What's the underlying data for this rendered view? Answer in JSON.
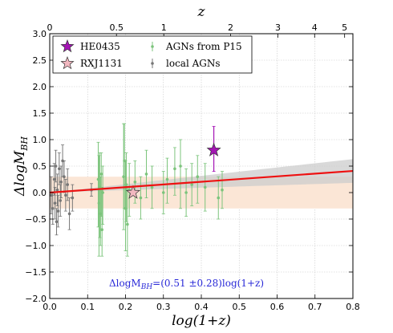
{
  "chart_data": {
    "type": "scatter",
    "xlabel": "log(1+z)",
    "ylabel": "ΔlogM_BH",
    "top_xlabel": "z",
    "xlim": [
      0.0,
      0.8
    ],
    "ylim": [
      -2.0,
      3.0
    ],
    "x_ticks": [
      "0.0",
      "0.1",
      "0.2",
      "0.3",
      "0.4",
      "0.5",
      "0.6",
      "0.7",
      "0.8"
    ],
    "y_ticks": [
      "−2.0",
      "−1.5",
      "−1.0",
      "−0.5",
      "0.0",
      "0.5",
      "1.0",
      "1.5",
      "2.0",
      "2.5",
      "3.0"
    ],
    "top_ticks": [
      {
        "label": "0",
        "z": 0
      },
      {
        "label": "0.5",
        "z": 0.5
      },
      {
        "label": "1",
        "z": 1
      },
      {
        "label": "2",
        "z": 2
      },
      {
        "label": "3",
        "z": 3
      },
      {
        "label": "4",
        "z": 4
      },
      {
        "label": "5",
        "z": 5
      }
    ],
    "grid": true,
    "legend_position": "top-left",
    "fit_annotation": {
      "prefix": "ΔlogM",
      "subscript": "BH",
      "suffix": "=(0.51 ±0.28)log(1+z)"
    },
    "fit_line": {
      "slope": 0.51,
      "intercept": 0.0,
      "color": "#ee1111"
    },
    "fit_uncertainty": {
      "slope_err": 0.28,
      "color": "#cccccc"
    },
    "intrinsic_scatter_band": {
      "ymin": -0.3,
      "ymax": 0.3,
      "color": "#fbe6d6"
    },
    "series": [
      {
        "name": "HE0435",
        "marker": "star",
        "color": "#a515b5",
        "points": [
          {
            "x": 0.433,
            "y": 0.8,
            "yerr_lo": 0.4,
            "yerr_hi": 0.45
          }
        ]
      },
      {
        "name": "RXJ1131",
        "marker": "star",
        "color": "#f2b8c0",
        "points": [
          {
            "x": 0.22,
            "y": 0.0,
            "yerr_lo": 0.0,
            "yerr_hi": 0.0
          }
        ]
      },
      {
        "name": "AGNs from P15",
        "marker": "dot",
        "color": "#7cc47c",
        "points": [
          {
            "x": 0.128,
            "y": 0.25,
            "yerr_lo": 0.9,
            "yerr_hi": 0.7
          },
          {
            "x": 0.13,
            "y": -0.2,
            "yerr_lo": 1.0,
            "yerr_hi": 0.9
          },
          {
            "x": 0.132,
            "y": 0.1,
            "yerr_lo": 0.95,
            "yerr_hi": 0.65
          },
          {
            "x": 0.134,
            "y": -0.4,
            "yerr_lo": 0.6,
            "yerr_hi": 0.7
          },
          {
            "x": 0.136,
            "y": 0.35,
            "yerr_lo": 0.8,
            "yerr_hi": 0.4
          },
          {
            "x": 0.138,
            "y": -0.7,
            "yerr_lo": 0.5,
            "yerr_hi": 0.8
          },
          {
            "x": 0.14,
            "y": 0.0,
            "yerr_lo": 0.6,
            "yerr_hi": 0.5
          },
          {
            "x": 0.195,
            "y": 0.3,
            "yerr_lo": 1.0,
            "yerr_hi": 1.0
          },
          {
            "x": 0.197,
            "y": 0.6,
            "yerr_lo": 0.9,
            "yerr_hi": 0.7
          },
          {
            "x": 0.2,
            "y": -0.3,
            "yerr_lo": 0.8,
            "yerr_hi": 0.9
          },
          {
            "x": 0.202,
            "y": 0.15,
            "yerr_lo": 0.7,
            "yerr_hi": 0.6
          },
          {
            "x": 0.205,
            "y": -0.6,
            "yerr_lo": 0.6,
            "yerr_hi": 0.7
          },
          {
            "x": 0.21,
            "y": 0.05,
            "yerr_lo": 0.5,
            "yerr_hi": 0.5
          },
          {
            "x": 0.225,
            "y": 0.2,
            "yerr_lo": 0.4,
            "yerr_hi": 0.4
          },
          {
            "x": 0.24,
            "y": -0.1,
            "yerr_lo": 0.4,
            "yerr_hi": 0.4
          },
          {
            "x": 0.255,
            "y": 0.35,
            "yerr_lo": 0.45,
            "yerr_hi": 0.45
          },
          {
            "x": 0.27,
            "y": 0.1,
            "yerr_lo": 0.4,
            "yerr_hi": 0.4
          },
          {
            "x": 0.3,
            "y": 0.0,
            "yerr_lo": 0.4,
            "yerr_hi": 0.4
          },
          {
            "x": 0.31,
            "y": 0.25,
            "yerr_lo": 0.45,
            "yerr_hi": 0.4
          },
          {
            "x": 0.33,
            "y": 0.45,
            "yerr_lo": 0.5,
            "yerr_hi": 0.4
          },
          {
            "x": 0.345,
            "y": 0.5,
            "yerr_lo": 0.8,
            "yerr_hi": 0.5
          },
          {
            "x": 0.36,
            "y": 0.0,
            "yerr_lo": 0.45,
            "yerr_hi": 0.45
          },
          {
            "x": 0.375,
            "y": 0.15,
            "yerr_lo": 0.4,
            "yerr_hi": 0.4
          },
          {
            "x": 0.39,
            "y": 0.3,
            "yerr_lo": 0.5,
            "yerr_hi": 0.4
          },
          {
            "x": 0.41,
            "y": 0.1,
            "yerr_lo": 0.45,
            "yerr_hi": 0.45
          },
          {
            "x": 0.445,
            "y": -0.1,
            "yerr_lo": 0.4,
            "yerr_hi": 0.4
          },
          {
            "x": 0.455,
            "y": 0.05,
            "yerr_lo": 0.35,
            "yerr_hi": 0.35
          }
        ]
      },
      {
        "name": "local AGNs",
        "marker": "dot",
        "color": "#777777",
        "points": [
          {
            "x": 0.004,
            "y": -0.05,
            "yerr_lo": 0.35,
            "yerr_hi": 0.35
          },
          {
            "x": 0.008,
            "y": -0.3,
            "yerr_lo": 0.3,
            "yerr_hi": 0.3
          },
          {
            "x": 0.012,
            "y": 0.25,
            "yerr_lo": 0.3,
            "yerr_hi": 0.3
          },
          {
            "x": 0.014,
            "y": -0.2,
            "yerr_lo": 0.3,
            "yerr_hi": 0.3
          },
          {
            "x": 0.016,
            "y": 0.5,
            "yerr_lo": 0.3,
            "yerr_hi": 0.3
          },
          {
            "x": 0.018,
            "y": -0.55,
            "yerr_lo": 0.25,
            "yerr_hi": 0.25
          },
          {
            "x": 0.02,
            "y": 0.05,
            "yerr_lo": 0.3,
            "yerr_hi": 0.3
          },
          {
            "x": 0.022,
            "y": -0.35,
            "yerr_lo": 0.3,
            "yerr_hi": 0.3
          },
          {
            "x": 0.025,
            "y": 0.45,
            "yerr_lo": 0.3,
            "yerr_hi": 0.3
          },
          {
            "x": 0.028,
            "y": -0.15,
            "yerr_lo": 0.3,
            "yerr_hi": 0.3
          },
          {
            "x": 0.03,
            "y": 0.2,
            "yerr_lo": 0.3,
            "yerr_hi": 0.3
          },
          {
            "x": 0.034,
            "y": 0.6,
            "yerr_lo": 0.3,
            "yerr_hi": 0.3
          },
          {
            "x": 0.038,
            "y": 0.3,
            "yerr_lo": 0.3,
            "yerr_hi": 0.3
          },
          {
            "x": 0.042,
            "y": -0.05,
            "yerr_lo": 0.3,
            "yerr_hi": 0.3
          },
          {
            "x": 0.047,
            "y": 0.15,
            "yerr_lo": 0.3,
            "yerr_hi": 0.3
          },
          {
            "x": 0.052,
            "y": -0.4,
            "yerr_lo": 0.3,
            "yerr_hi": 0.3
          },
          {
            "x": 0.06,
            "y": -0.1,
            "yerr_lo": 0.25,
            "yerr_hi": 0.25
          },
          {
            "x": 0.11,
            "y": 0.05,
            "yerr_lo": 0.12,
            "yerr_hi": 0.12
          }
        ]
      }
    ]
  }
}
